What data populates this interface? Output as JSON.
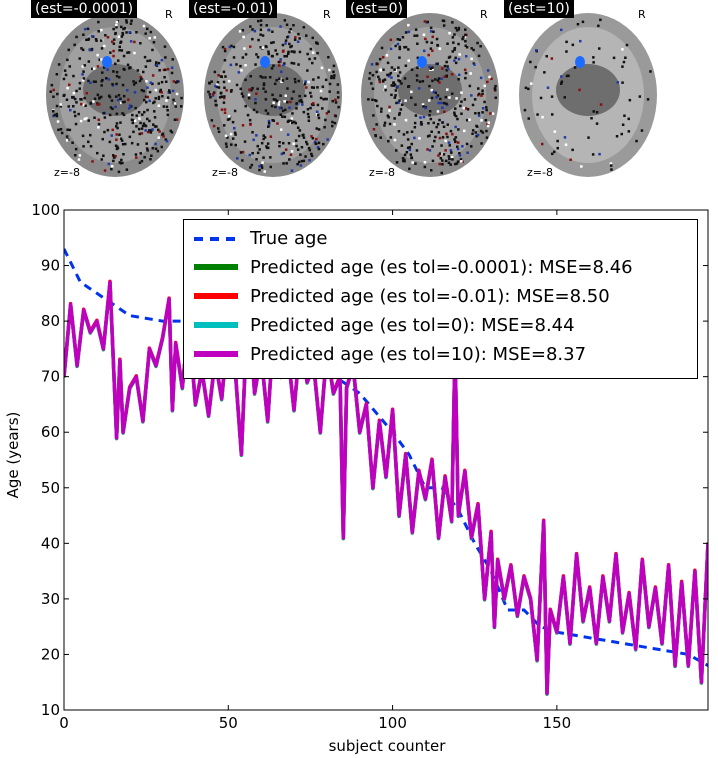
{
  "panels": [
    {
      "label": "(est=-0.0001)",
      "orientation": "R",
      "slice": "z=-8"
    },
    {
      "label": "(est=-0.01)",
      "orientation": "R",
      "slice": "z=-8"
    },
    {
      "label": "(est=0)",
      "orientation": "R",
      "slice": "z=-8"
    },
    {
      "label": "(est=10)",
      "orientation": "R",
      "slice": "z=-8"
    }
  ],
  "chart_data": {
    "type": "line",
    "title": "",
    "xlabel": "subject counter",
    "ylabel": "Age (years)",
    "xlim": [
      0,
      196
    ],
    "ylim": [
      10,
      100
    ],
    "xticks": [
      0,
      50,
      100,
      150
    ],
    "yticks": [
      10,
      20,
      30,
      40,
      50,
      60,
      70,
      80,
      90,
      100
    ],
    "legend_position": "top-right",
    "grid": false,
    "true_age": {
      "name": "True age",
      "color": "#0033ee",
      "style": "dashed",
      "x": [
        0,
        5,
        10,
        15,
        20,
        30,
        40,
        50,
        60,
        70,
        80,
        90,
        100,
        105,
        110,
        115,
        120,
        125,
        130,
        135,
        140,
        145,
        150,
        160,
        170,
        180,
        190,
        196
      ],
      "y": [
        93,
        87,
        85,
        83,
        81,
        80,
        80,
        79,
        77,
        74,
        71,
        67,
        60,
        56,
        50,
        50,
        46,
        40,
        35,
        28,
        28,
        25,
        24,
        23,
        22,
        21,
        20,
        18
      ]
    },
    "series": [
      {
        "name": "Predicted age (es tol=-0.0001): MSE=8.46",
        "color": "#008000"
      },
      {
        "name": "Predicted age (es tol=-0.01): MSE=8.50",
        "color": "#ff0000"
      },
      {
        "name": "Predicted age (es tol=0): MSE=8.44",
        "color": "#00bfbf"
      },
      {
        "name": "Predicted age (es tol=10): MSE=8.37",
        "color": "#bf00bf"
      }
    ],
    "predicted_x": [
      0,
      2,
      4,
      6,
      8,
      10,
      12,
      14,
      15,
      16,
      17,
      18,
      20,
      22,
      24,
      26,
      28,
      30,
      32,
      33,
      34,
      36,
      38,
      40,
      42,
      44,
      46,
      48,
      50,
      52,
      54,
      56,
      58,
      60,
      62,
      64,
      66,
      68,
      70,
      72,
      74,
      76,
      78,
      80,
      82,
      84,
      85,
      86,
      88,
      90,
      92,
      94,
      96,
      98,
      100,
      102,
      104,
      106,
      108,
      110,
      112,
      114,
      116,
      118,
      119,
      120,
      122,
      124,
      126,
      128,
      130,
      131,
      132,
      134,
      136,
      138,
      140,
      142,
      144,
      146,
      147,
      148,
      150,
      152,
      154,
      156,
      158,
      160,
      162,
      164,
      166,
      168,
      170,
      172,
      174,
      176,
      178,
      180,
      182,
      184,
      186,
      188,
      190,
      192,
      194,
      196
    ],
    "predicted_y": [
      70,
      83,
      72,
      82,
      78,
      80,
      75,
      87,
      73,
      59,
      73,
      60,
      68,
      70,
      62,
      75,
      72,
      77,
      84,
      64,
      76,
      68,
      80,
      65,
      71,
      63,
      73,
      66,
      79,
      72,
      56,
      84,
      67,
      74,
      62,
      80,
      70,
      75,
      64,
      77,
      69,
      72,
      60,
      75,
      67,
      70,
      41,
      68,
      72,
      60,
      65,
      50,
      62,
      52,
      64,
      45,
      56,
      42,
      53,
      48,
      55,
      41,
      52,
      44,
      75,
      45,
      53,
      41,
      47,
      30,
      42,
      25,
      37,
      30,
      36,
      27,
      34,
      30,
      19,
      44,
      13,
      28,
      24,
      34,
      22,
      38,
      26,
      32,
      22,
      34,
      26,
      38,
      24,
      31,
      21,
      37,
      25,
      32,
      22,
      36,
      18,
      33,
      18,
      35,
      15,
      40
    ]
  }
}
